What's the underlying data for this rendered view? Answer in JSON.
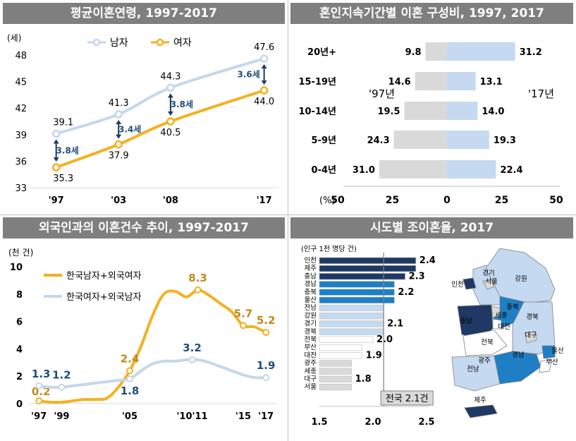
{
  "panels": {
    "p1_title": "평균이혼연령, 1997-2017",
    "p2_title": "혼인지속기간별 이혼 구성비, 1997, 2017",
    "p3_title": "외국인과의 이혼건수 추이, 1997-2017",
    "p4_title": "시도별 조이혼율, 2017"
  },
  "chart_data": [
    {
      "type": "line",
      "title": "평균이혼연령, 1997-2017",
      "unit_label": "(세)",
      "x_tick_labels": [
        "'97",
        "'03",
        "'08",
        "'17"
      ],
      "x": [
        1997,
        2003,
        2008,
        2017
      ],
      "ylim": [
        33,
        48
      ],
      "yticks": [
        "33",
        "36",
        "39",
        "42",
        "45",
        "48"
      ],
      "series": [
        {
          "name": "남자",
          "color": "#c5d7eb",
          "values": [
            39.1,
            41.3,
            44.3,
            47.6
          ],
          "labels": [
            "39.1",
            "41.3",
            "44.3",
            "47.6"
          ]
        },
        {
          "name": "여자",
          "color": "#f5b120",
          "values": [
            35.3,
            37.9,
            40.5,
            44.0
          ],
          "labels": [
            "35.3",
            "37.9",
            "40.5",
            "44.0"
          ]
        }
      ],
      "gaps": [
        "3.8세",
        "3.4세",
        "3.8세",
        "3.6세"
      ],
      "legend": "top-left"
    },
    {
      "type": "bar",
      "orientation": "horizontal-diverging",
      "title": "혼인지속기간별 이혼 구성비, 1997, 2017",
      "categories": [
        "20년+",
        "15-19년",
        "10-14년",
        "5-9년",
        "0-4년"
      ],
      "series": [
        {
          "name": "'97년",
          "color": "#d9d9d9",
          "values": [
            9.8,
            14.6,
            19.5,
            24.3,
            31.0
          ],
          "labels": [
            "9.8",
            "14.6",
            "19.5",
            "24.3",
            "31.0"
          ]
        },
        {
          "name": "'17년",
          "color": "#c5d9f1",
          "values": [
            31.2,
            13.1,
            14.0,
            19.3,
            22.4
          ],
          "labels": [
            "31.2",
            "13.1",
            "14.0",
            "19.3",
            "22.4"
          ]
        }
      ],
      "xticks": [
        "50",
        "25",
        "0",
        "25",
        "50"
      ],
      "unit_label": "(%)"
    },
    {
      "type": "line",
      "title": "외국인과의 이혼건수 추이, 1997-2017",
      "unit_label": "(천 건)",
      "x_tick_labels": [
        "'97",
        "'99",
        "'05",
        "'10'11",
        "'15",
        "'17"
      ],
      "ylim": [
        0,
        10
      ],
      "yticks": [
        "0",
        "2",
        "4",
        "6",
        "8",
        "10"
      ],
      "series": [
        {
          "name": "한국남자+외국여자",
          "color": "#f5b120",
          "x": [
            1997,
            1998,
            1999,
            2000,
            2001,
            2002,
            2003,
            2004,
            2005,
            2006,
            2007,
            2008,
            2009,
            2010,
            2011,
            2012,
            2013,
            2014,
            2015,
            2016,
            2017
          ],
          "values": [
            0.2,
            0.1,
            0.1,
            0.2,
            0.3,
            0.3,
            0.4,
            1.2,
            2.4,
            4.2,
            6.4,
            8.0,
            8.2,
            7.8,
            8.3,
            7.9,
            7.3,
            6.7,
            5.7,
            5.6,
            5.2
          ],
          "labels": [
            {
              "x": 1997,
              "text": "0.2"
            },
            {
              "x": 2005,
              "text": "2.4"
            },
            {
              "x": 2011,
              "text": "8.3"
            },
            {
              "x": 2015,
              "text": "5.7"
            },
            {
              "x": 2017,
              "text": "5.2"
            }
          ]
        },
        {
          "name": "한국여자+외국남자",
          "color": "#c5d7eb",
          "x": [
            1997,
            1998,
            1999,
            2000,
            2001,
            2002,
            2003,
            2004,
            2005,
            2006,
            2007,
            2008,
            2009,
            2010,
            2011,
            2012,
            2013,
            2014,
            2015,
            2016,
            2017
          ],
          "values": [
            1.3,
            1.2,
            1.2,
            1.3,
            1.4,
            1.5,
            1.6,
            1.7,
            1.8,
            2.4,
            2.9,
            3.1,
            3.1,
            3.2,
            3.2,
            3.0,
            2.7,
            2.4,
            2.1,
            1.9,
            1.9
          ],
          "labels": [
            {
              "x": 1997,
              "text": "1.3"
            },
            {
              "x": 1999,
              "text": "1.2"
            },
            {
              "x": 2005,
              "text": "1.8"
            },
            {
              "x": 2010.5,
              "text": "3.2"
            },
            {
              "x": 2017,
              "text": "1.9"
            }
          ]
        }
      ],
      "legend": "top-left"
    },
    {
      "type": "bar",
      "orientation": "horizontal",
      "title": "시도별 조이혼율, 2017",
      "unit_label": "(인구 1천 명당 건)",
      "categories": [
        "인천",
        "제주",
        "충남",
        "경남",
        "충북",
        "울산",
        "전남",
        "강원",
        "경기",
        "경북",
        "전북",
        "부산",
        "대전",
        "광주",
        "세종",
        "대구",
        "서울"
      ],
      "values": [
        2.4,
        2.4,
        2.3,
        2.2,
        2.2,
        2.2,
        2.1,
        2.1,
        2.1,
        2.1,
        2.0,
        1.9,
        1.9,
        1.8,
        1.8,
        1.8,
        1.8
      ],
      "colors": [
        "#1f3864",
        "#1f3864",
        "#1f3864",
        "#1f7fc4",
        "#1f7fc4",
        "#1f7fc4",
        "#c5d9f1",
        "#c5d9f1",
        "#c5d9f1",
        "#c5d9f1",
        "#ffffff",
        "#ffffff",
        "#ffffff",
        "#d9d9d9",
        "#d9d9d9",
        "#d9d9d9",
        "#d9d9d9"
      ],
      "group_labels": [
        {
          "first": 0,
          "last": 2,
          "text": "2.4"
        },
        {
          "first": 0,
          "last": 2,
          "text": "2.3"
        },
        {
          "first": 3,
          "last": 5,
          "text": "2.2"
        },
        {
          "first": 6,
          "last": 9,
          "text": "2.1"
        },
        {
          "first": 10,
          "last": 10,
          "text": "2.0"
        },
        {
          "first": 11,
          "last": 12,
          "text": "1.9"
        },
        {
          "first": 13,
          "last": 16,
          "text": "1.8"
        }
      ],
      "xlim": [
        1.5,
        2.5
      ],
      "xticks": [
        "1.5",
        "2.0",
        "2.5"
      ],
      "national_label": "전국 2.1건",
      "national_value": 2.1
    }
  ],
  "map": {
    "regions": [
      {
        "name": "경기",
        "tier": "light"
      },
      {
        "name": "서울",
        "tier": "gray"
      },
      {
        "name": "인천",
        "tier": "dark"
      },
      {
        "name": "강원",
        "tier": "light"
      },
      {
        "name": "충북",
        "tier": "mid"
      },
      {
        "name": "세종",
        "tier": "gray"
      },
      {
        "name": "충남",
        "tier": "dark"
      },
      {
        "name": "대전",
        "tier": "white"
      },
      {
        "name": "경북",
        "tier": "light"
      },
      {
        "name": "대구",
        "tier": "gray"
      },
      {
        "name": "전북",
        "tier": "white"
      },
      {
        "name": "광주",
        "tier": "gray"
      },
      {
        "name": "전남",
        "tier": "light"
      },
      {
        "name": "경남",
        "tier": "mid"
      },
      {
        "name": "울산",
        "tier": "mid"
      },
      {
        "name": "부산",
        "tier": "white"
      },
      {
        "name": "제주",
        "tier": "dark"
      }
    ],
    "colors": {
      "dark": "#1f3864",
      "mid": "#1f7fc4",
      "light": "#c5d9f1",
      "white": "#ffffff",
      "gray": "#d9d9d9"
    }
  }
}
